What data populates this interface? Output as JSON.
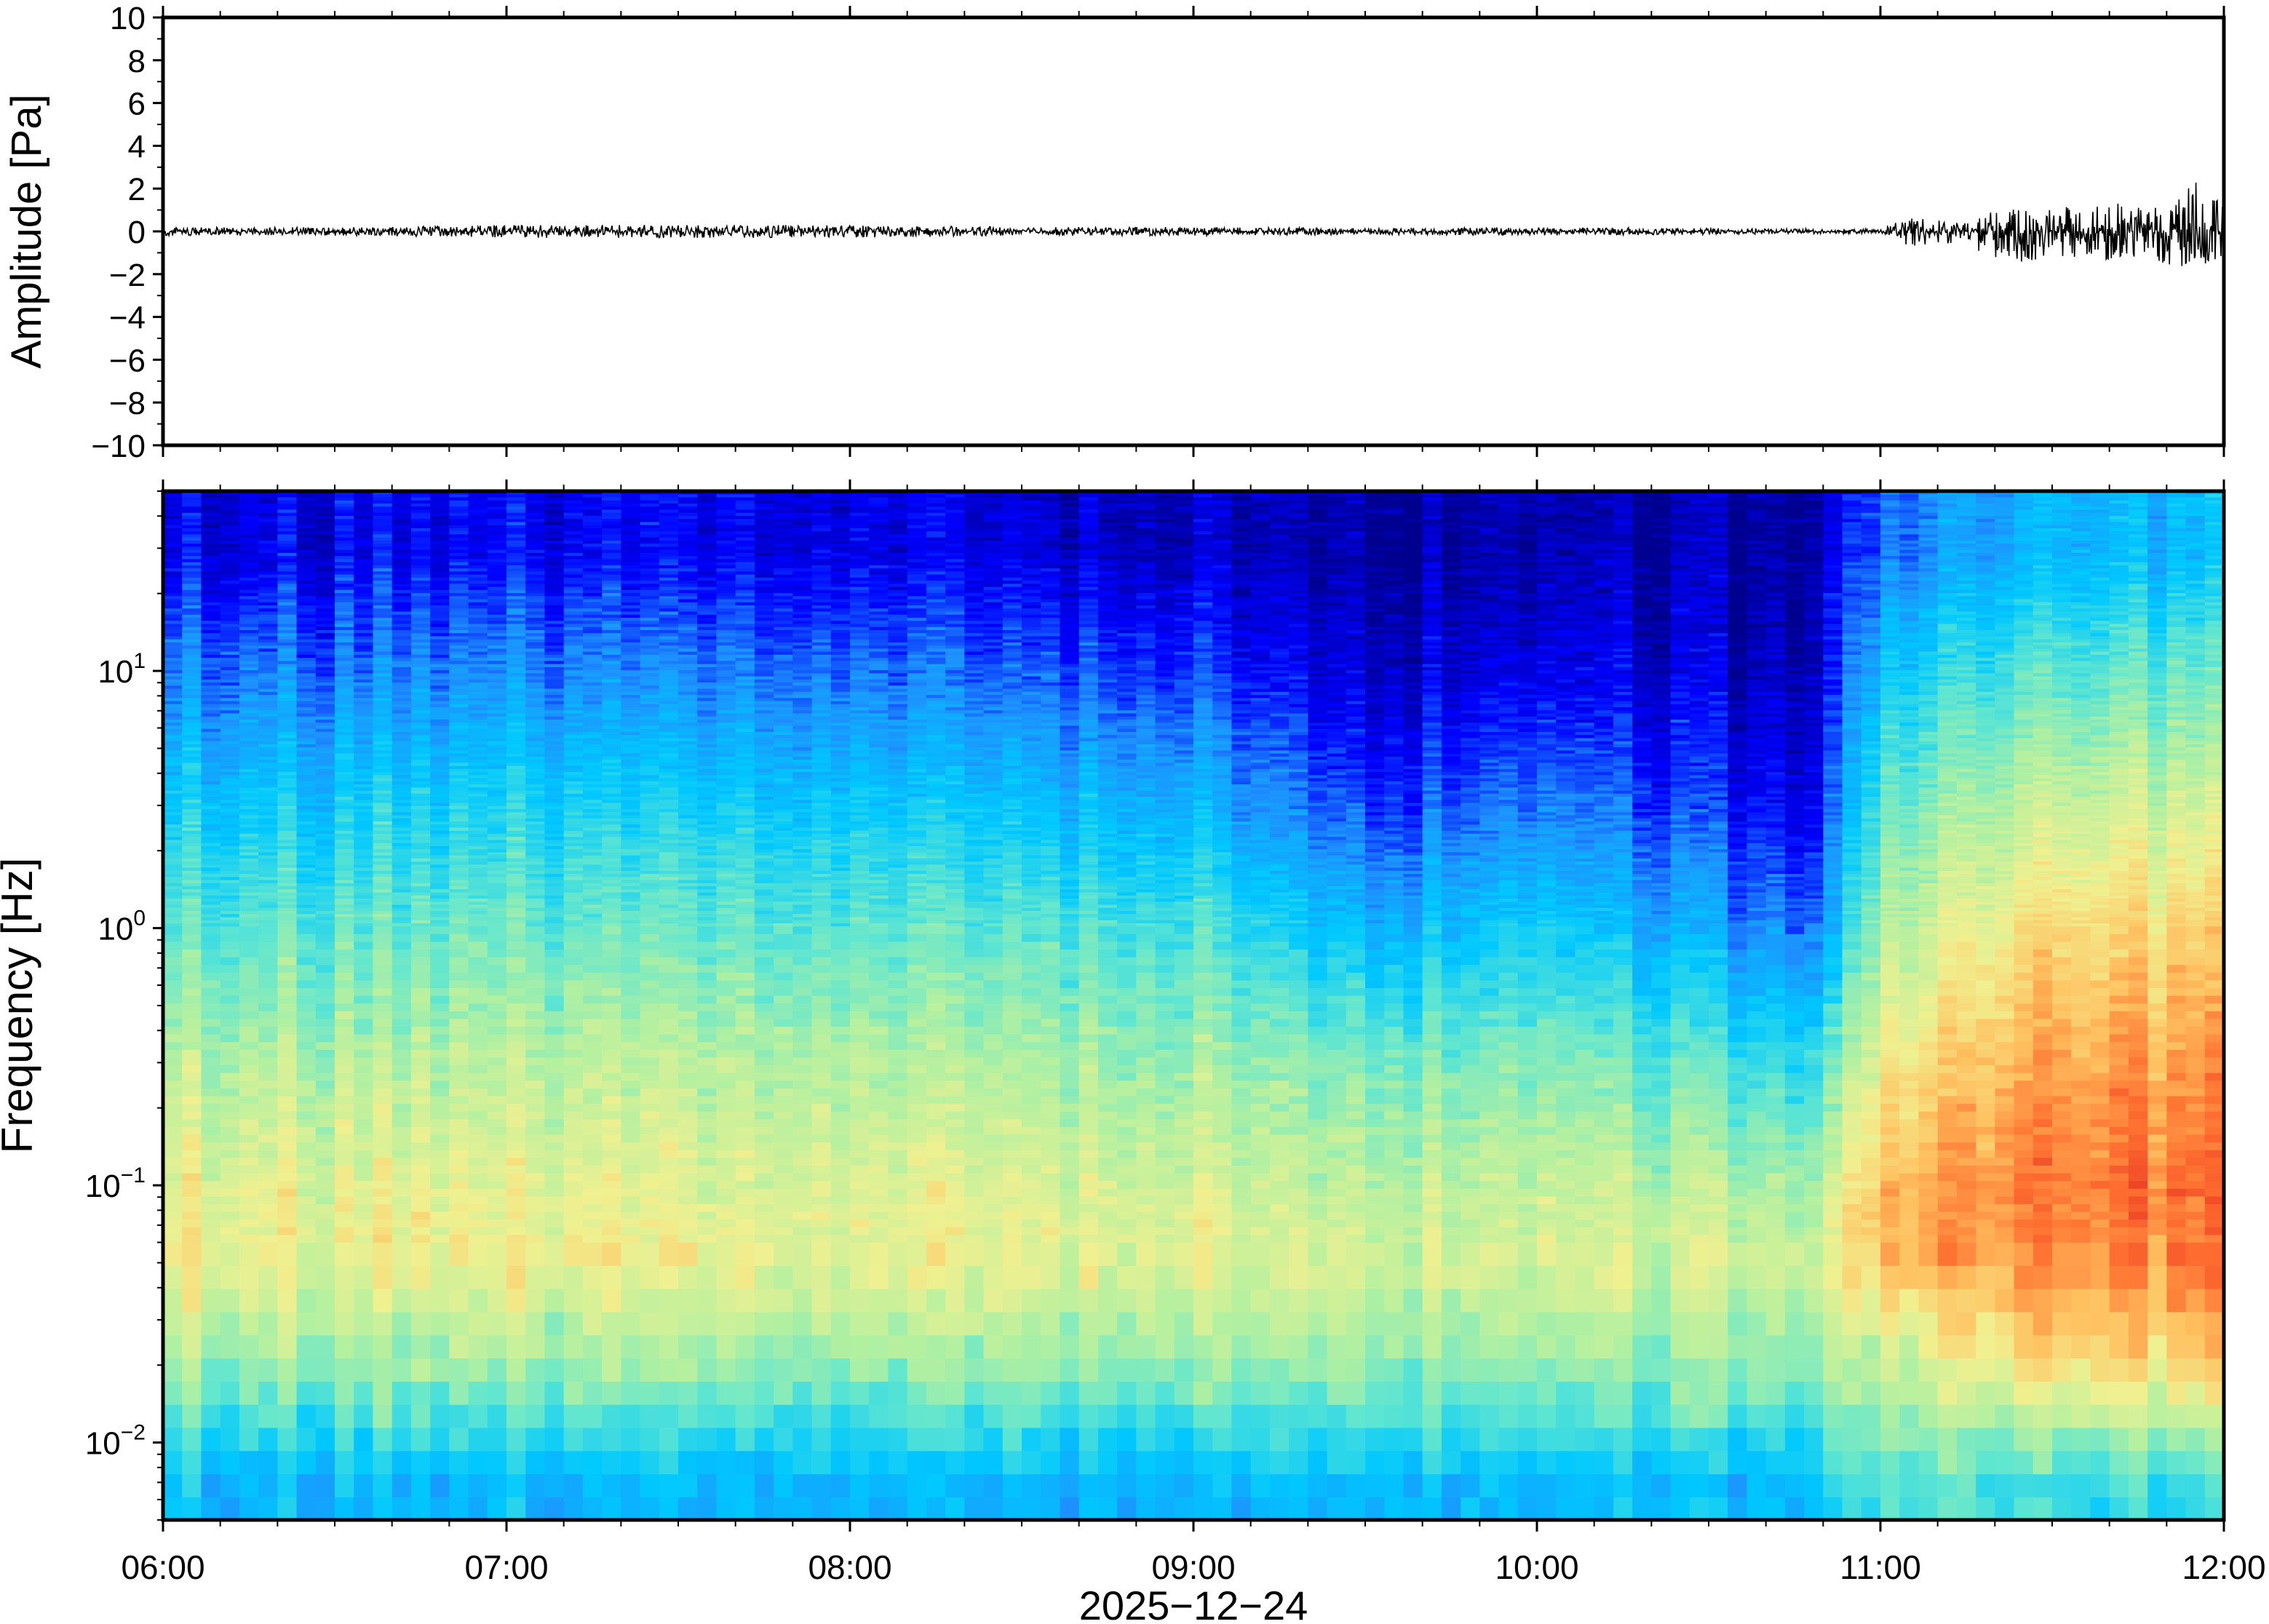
{
  "chart_data": [
    {
      "type": "line",
      "panel": "waveform",
      "ylabel": "Amplitude [Pa]",
      "ylim": [
        -10,
        10
      ],
      "yticks": [
        10,
        8,
        6,
        4,
        2,
        0,
        -2,
        -4,
        -6,
        -8,
        -10
      ],
      "ytick_labels": [
        "10",
        "8",
        "6",
        "4",
        "2",
        "0",
        "−2",
        "−4",
        "−6",
        "−8",
        "−10"
      ],
      "xlim": [
        "06:00",
        "12:00"
      ],
      "grid": false,
      "series": [
        {
          "color": "#000000",
          "x": [
            "06:00",
            "06:30",
            "07:00",
            "07:30",
            "08:00",
            "08:30",
            "09:00",
            "09:30",
            "10:00",
            "10:30",
            "11:00",
            "11:05",
            "11:15",
            "11:20",
            "11:30",
            "11:40",
            "11:50",
            "11:55",
            "12:00"
          ],
          "envelope_max": [
            0.2,
            0.2,
            0.3,
            0.3,
            0.3,
            0.2,
            0.2,
            0.15,
            0.2,
            0.15,
            0.1,
            0.7,
            0.5,
            1.0,
            1.2,
            1.3,
            1.4,
            2.5,
            1.2
          ],
          "envelope_min": [
            -0.2,
            -0.2,
            -0.3,
            -0.3,
            -0.3,
            -0.2,
            -0.2,
            -0.15,
            -0.2,
            -0.15,
            -0.1,
            -0.7,
            -0.5,
            -1.6,
            -1.3,
            -1.4,
            -1.6,
            -1.9,
            -1.2
          ]
        }
      ]
    },
    {
      "type": "heatmap",
      "panel": "spectrogram",
      "ylabel": "Frequency [Hz]",
      "yscale": "log",
      "ylim": [
        0.005,
        50
      ],
      "yticks": [
        0.01,
        0.1,
        1,
        10
      ],
      "ytick_labels": [
        {
          "base": "10",
          "exp": "−2"
        },
        {
          "base": "10",
          "exp": "−1"
        },
        {
          "base": "10",
          "exp": "0"
        },
        {
          "base": "10",
          "exp": "1"
        }
      ],
      "xlabel": "2025−12−24",
      "xticks": [
        "06:00",
        "07:00",
        "08:00",
        "09:00",
        "10:00",
        "11:00",
        "12:00"
      ],
      "xlim": [
        "06:00",
        "12:00"
      ],
      "colormap": "jet",
      "colorscale": [
        "#00008f",
        "#0000ff",
        "#1e90ff",
        "#00c8ff",
        "#60e6d0",
        "#b4f0a0",
        "#f0f090",
        "#ffc060",
        "#ff7030",
        "#e02020"
      ],
      "relative_power_by_band": {
        "bands_hz": [
          0.007,
          0.02,
          0.05,
          0.1,
          0.3,
          1,
          3,
          10,
          30
        ],
        "times": [
          "06:00",
          "07:00",
          "08:00",
          "09:00",
          "09:30",
          "10:00",
          "10:50",
          "11:00",
          "11:30",
          "12:00"
        ],
        "values": [
          [
            0.3,
            0.3,
            0.3,
            0.3,
            0.32,
            0.32,
            0.32,
            0.45,
            0.4,
            0.4
          ],
          [
            0.52,
            0.52,
            0.52,
            0.52,
            0.52,
            0.52,
            0.52,
            0.58,
            0.72,
            0.72
          ],
          [
            0.65,
            0.66,
            0.65,
            0.65,
            0.62,
            0.63,
            0.6,
            0.78,
            0.85,
            0.86
          ],
          [
            0.64,
            0.64,
            0.63,
            0.62,
            0.57,
            0.6,
            0.55,
            0.78,
            0.88,
            0.88
          ],
          [
            0.55,
            0.57,
            0.56,
            0.54,
            0.48,
            0.5,
            0.4,
            0.68,
            0.82,
            0.82
          ],
          [
            0.44,
            0.46,
            0.45,
            0.43,
            0.3,
            0.36,
            0.2,
            0.56,
            0.72,
            0.72
          ],
          [
            0.33,
            0.36,
            0.34,
            0.3,
            0.15,
            0.22,
            0.1,
            0.46,
            0.6,
            0.6
          ],
          [
            0.2,
            0.22,
            0.2,
            0.16,
            0.06,
            0.1,
            0.05,
            0.34,
            0.45,
            0.45
          ],
          [
            0.08,
            0.1,
            0.09,
            0.06,
            0.02,
            0.04,
            0.03,
            0.2,
            0.3,
            0.3
          ]
        ]
      }
    }
  ]
}
